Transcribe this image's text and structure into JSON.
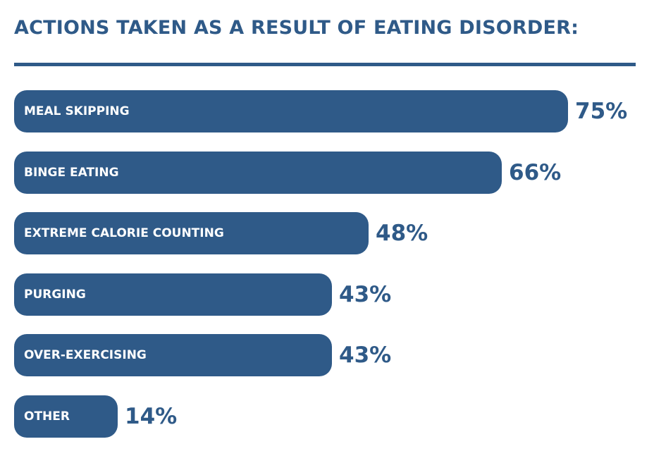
{
  "colors": {
    "bar": "#2f5a88",
    "title": "#2f5a88",
    "label": "#ffffff",
    "background": "#ffffff"
  },
  "chart_data": {
    "type": "bar",
    "orientation": "horizontal",
    "title": "ACTIONS TAKEN AS A RESULT OF EATING DISORDER:",
    "categories": [
      "MEAL SKIPPING",
      "BINGE EATING",
      "EXTREME CALORIE COUNTING",
      "PURGING",
      "OVER-EXERCISING",
      "OTHER"
    ],
    "values": [
      75,
      66,
      48,
      43,
      43,
      14
    ],
    "value_labels": [
      "75%",
      "66%",
      "48%",
      "43%",
      "43%",
      "14%"
    ],
    "unit": "%",
    "xlim": [
      0,
      75
    ],
    "grid": false,
    "legend": "none"
  }
}
